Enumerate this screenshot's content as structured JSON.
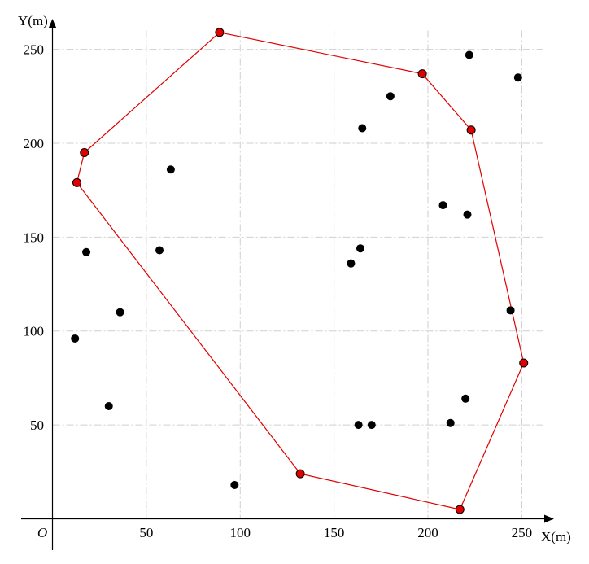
{
  "chart_data": {
    "type": "scatter",
    "xlabel": "X(m)",
    "ylabel": "Y(m)",
    "origin_label": "O",
    "xlim": [
      -15,
      262
    ],
    "ylim": [
      -6,
      262
    ],
    "x_ticks": [
      50,
      100,
      150,
      200,
      250
    ],
    "y_ticks": [
      50,
      100,
      150,
      200,
      250
    ],
    "grid": true,
    "hull_color": "#e00000",
    "point_color": "#000000",
    "points": [
      {
        "x": 12,
        "y": 96
      },
      {
        "x": 18,
        "y": 142
      },
      {
        "x": 30,
        "y": 60
      },
      {
        "x": 36,
        "y": 110
      },
      {
        "x": 57,
        "y": 143
      },
      {
        "x": 63,
        "y": 186
      },
      {
        "x": 97,
        "y": 18
      },
      {
        "x": 159,
        "y": 136
      },
      {
        "x": 163,
        "y": 50
      },
      {
        "x": 164,
        "y": 144
      },
      {
        "x": 165,
        "y": 208
      },
      {
        "x": 170,
        "y": 50
      },
      {
        "x": 180,
        "y": 225
      },
      {
        "x": 208,
        "y": 167
      },
      {
        "x": 212,
        "y": 51
      },
      {
        "x": 220,
        "y": 64
      },
      {
        "x": 221,
        "y": 162
      },
      {
        "x": 222,
        "y": 247
      },
      {
        "x": 244,
        "y": 111
      },
      {
        "x": 248,
        "y": 235
      }
    ],
    "hull": [
      {
        "x": 89,
        "y": 259
      },
      {
        "x": 197,
        "y": 237
      },
      {
        "x": 223,
        "y": 207
      },
      {
        "x": 251,
        "y": 83
      },
      {
        "x": 217,
        "y": 5
      },
      {
        "x": 132,
        "y": 24
      },
      {
        "x": 13,
        "y": 179
      },
      {
        "x": 17,
        "y": 195
      }
    ]
  }
}
